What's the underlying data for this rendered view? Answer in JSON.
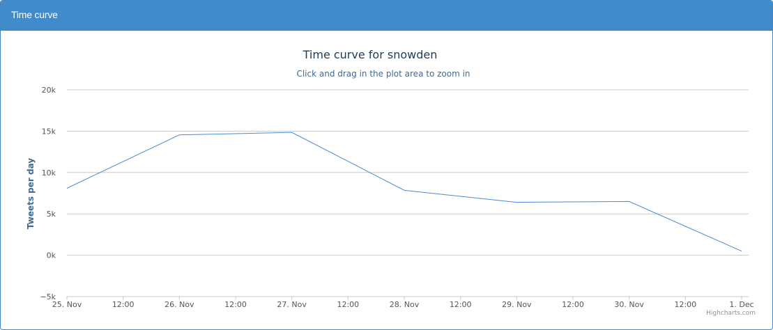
{
  "panel": {
    "title": "Time curve"
  },
  "chart_data": {
    "type": "line",
    "title": "Time curve for snowden",
    "subtitle": "Click and drag in the plot area to zoom in",
    "ylabel": "Tweets per day",
    "xlabel": "",
    "ylim": [
      -5000,
      20000
    ],
    "y_ticks": [
      -5000,
      0,
      5000,
      10000,
      15000,
      20000
    ],
    "y_tick_labels": [
      "−5k",
      "0k",
      "5k",
      "10k",
      "15k",
      "20k"
    ],
    "x_ticks": [
      "25. Nov",
      "12:00",
      "26. Nov",
      "12:00",
      "27. Nov",
      "12:00",
      "28. Nov",
      "12:00",
      "29. Nov",
      "12:00",
      "30. Nov",
      "12:00",
      "1. Dec"
    ],
    "x": [
      "25. Nov",
      "26. Nov",
      "27. Nov",
      "28. Nov",
      "29. Nov",
      "30. Nov",
      "1. Dec"
    ],
    "series": [
      {
        "values": [
          8100,
          14550,
          14850,
          7850,
          6400,
          6500,
          500
        ],
        "color": "#4a8bd0"
      }
    ],
    "grid": true,
    "legend": "none"
  },
  "credits": "Highcharts.com"
}
